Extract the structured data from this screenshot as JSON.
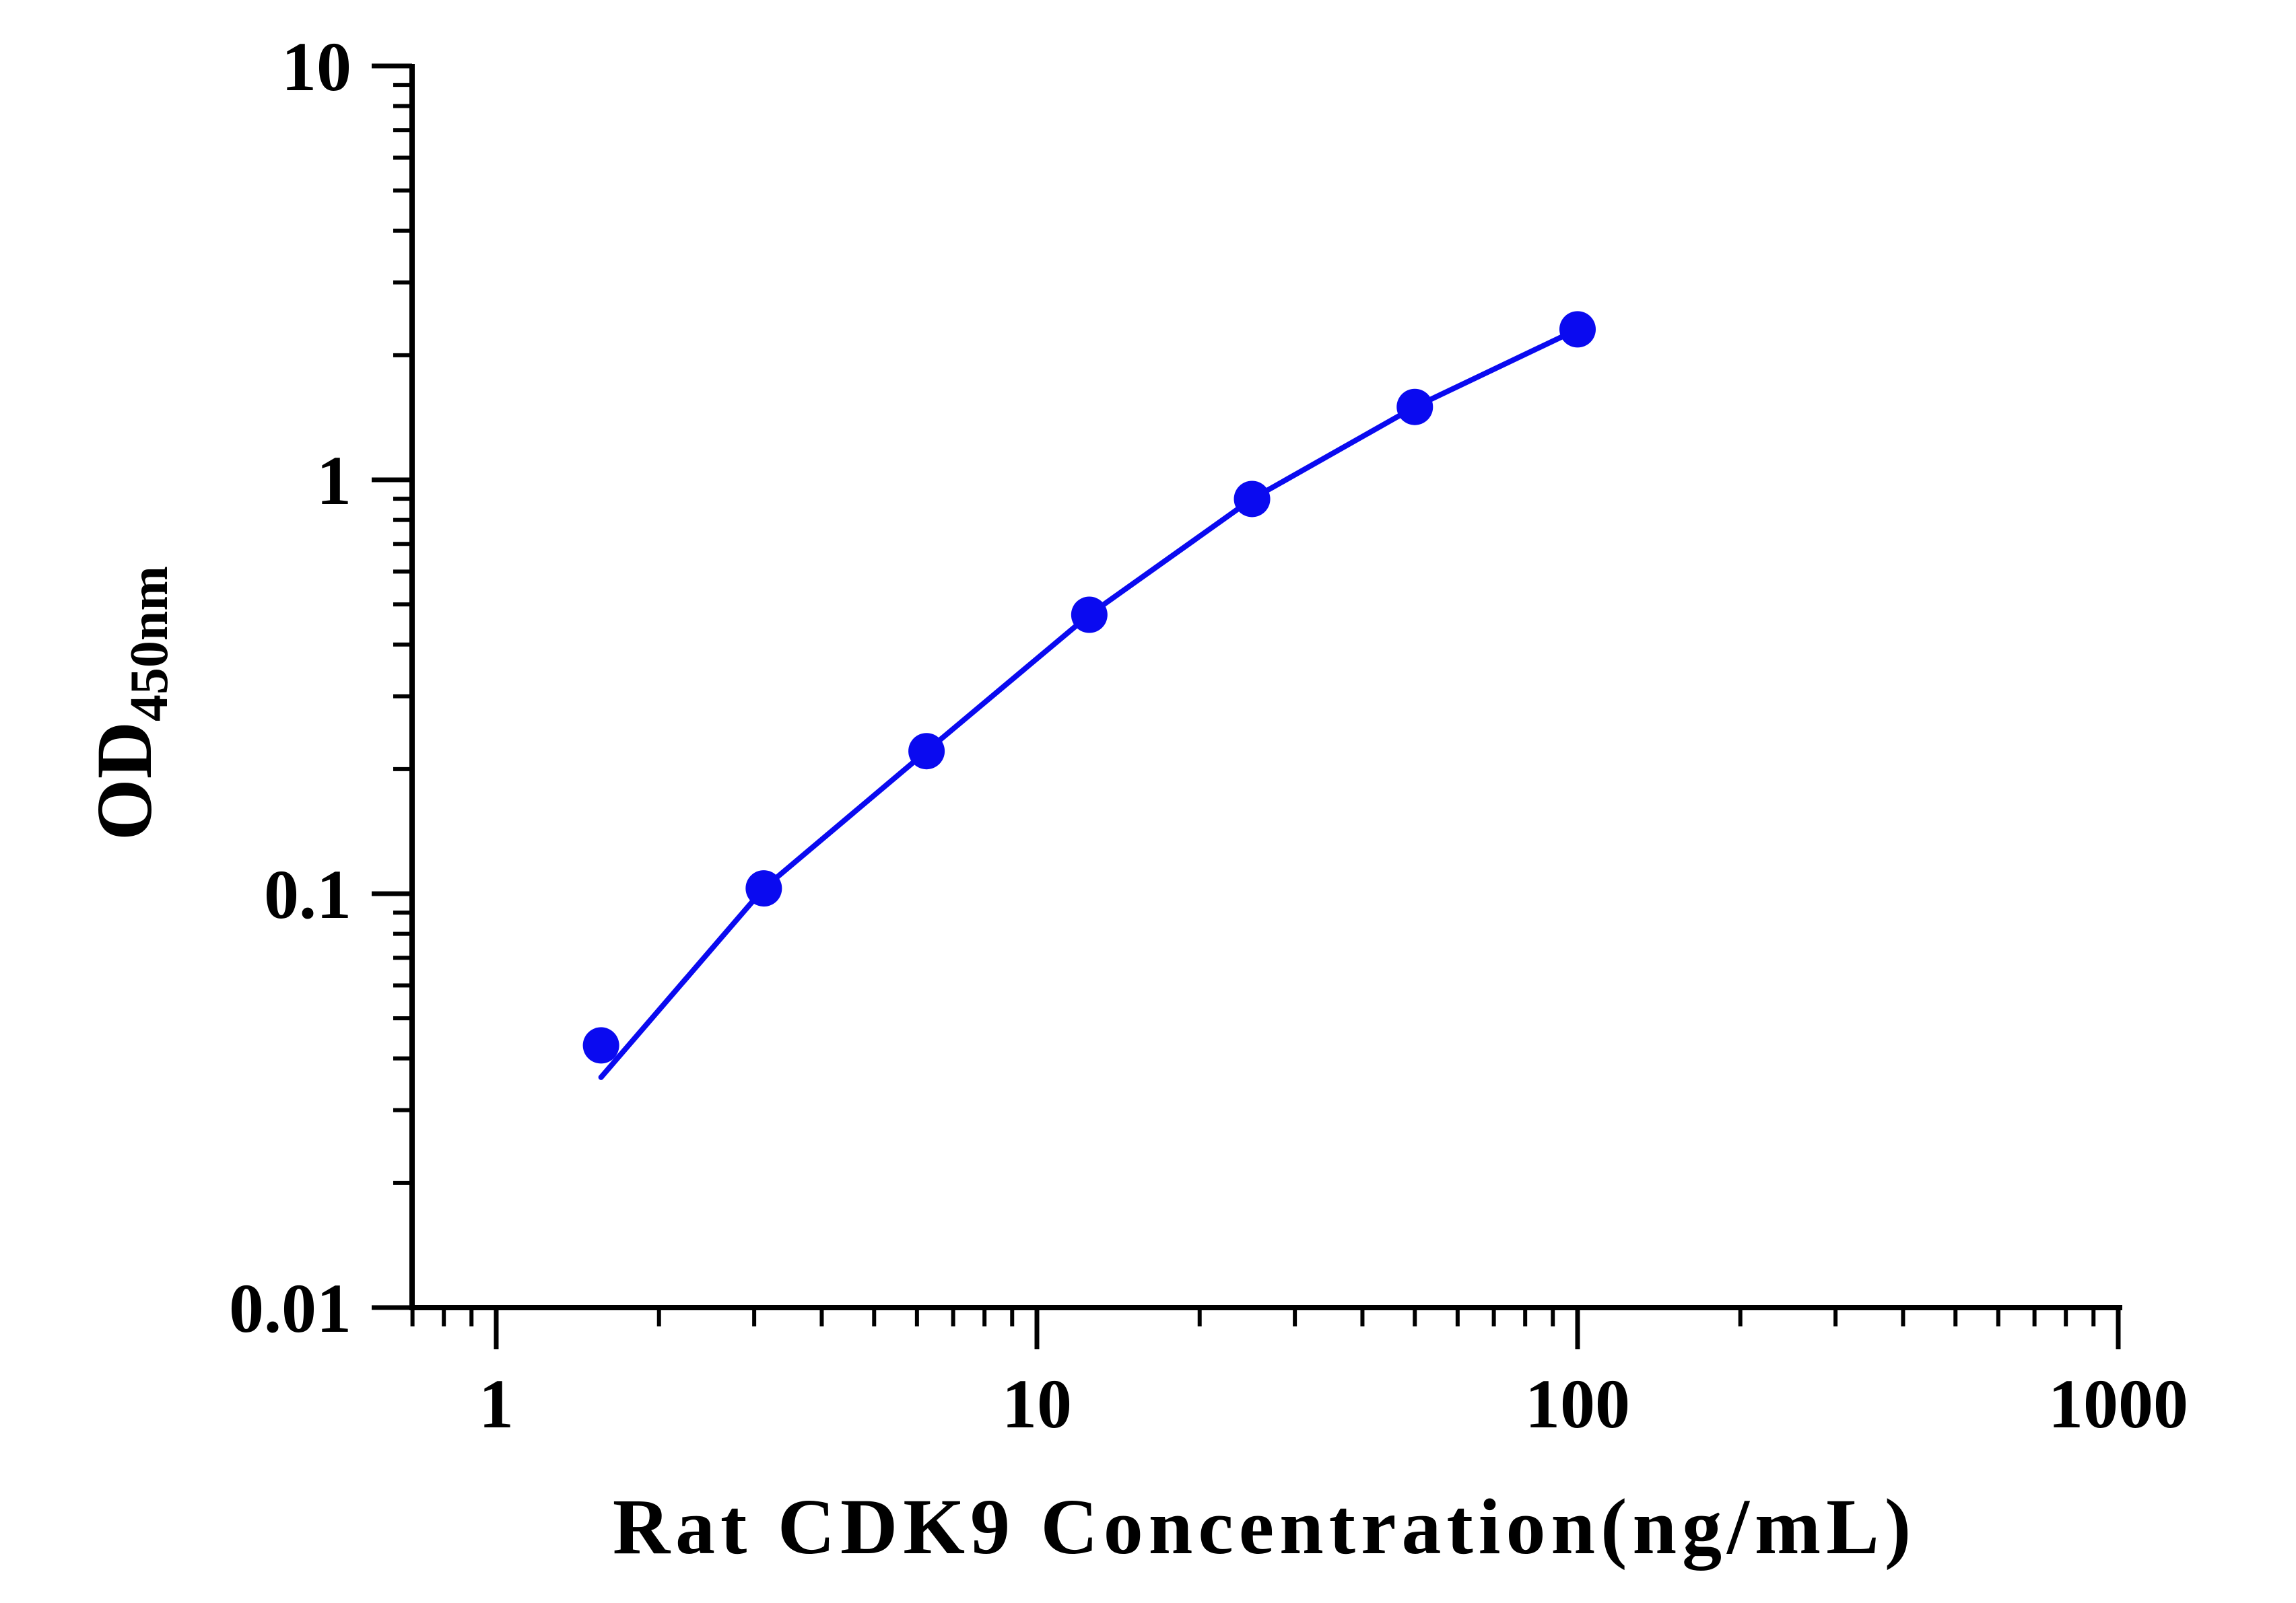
{
  "chart_data": {
    "type": "scatter",
    "title": "",
    "xlabel": "Rat CDK9 Concentration(ng/mL)",
    "ylabel": {
      "main": "OD",
      "subscript": "450nm"
    },
    "x_scale": "log",
    "y_scale": "log",
    "xlim": [
      0.7,
      1000
    ],
    "ylim": [
      0.01,
      10
    ],
    "x_ticks": [
      "1",
      "10",
      "100",
      "1000"
    ],
    "y_ticks": [
      "0.01",
      "0.1",
      "1",
      "10"
    ],
    "grid": false,
    "legend": "none",
    "series": [
      {
        "x": [
          1.5625,
          3.125,
          6.25,
          12.5,
          25,
          50,
          100
        ],
        "y": [
          0.043,
          0.103,
          0.221,
          0.472,
          0.899,
          1.5,
          2.31
        ],
        "fit_curve": true
      }
    ],
    "colors": {
      "series": "#0a0af0",
      "axis": "#000000"
    }
  }
}
